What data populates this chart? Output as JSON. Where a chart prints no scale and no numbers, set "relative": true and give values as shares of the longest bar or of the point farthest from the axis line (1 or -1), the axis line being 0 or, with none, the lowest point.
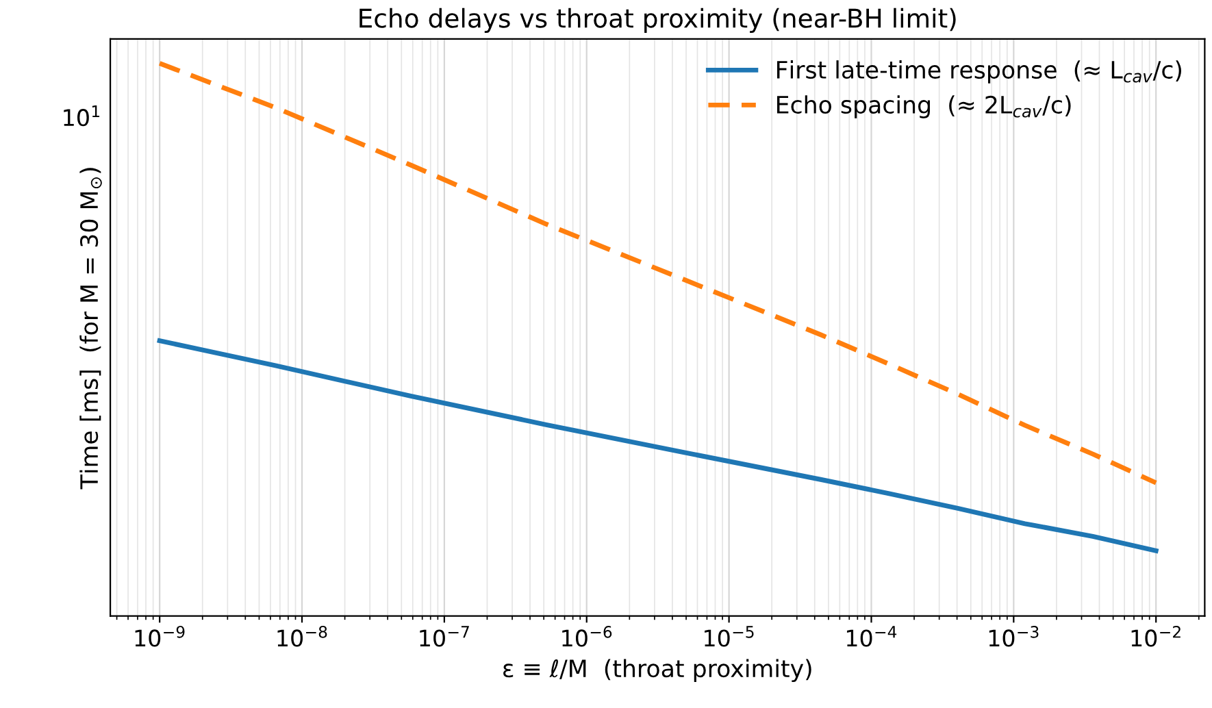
{
  "chart_data": {
    "type": "line",
    "title": "Echo delays vs throat proximity (near-BH limit)",
    "xlabel": "ε ≡ ℓ/M  (throat proximity)",
    "ylabel": "Time [ms]  (for M = 30 M$_{⊙}$)",
    "log": "x",
    "grid": true,
    "legend": "top right",
    "x": [
      1e-09,
      6.5e-09,
      5.8e-08,
      5.2e-07,
      4.8e-06,
      4.4e-05,
      0.00013,
      0.0004,
      0.0012,
      0.0036,
      0.01
    ],
    "series": [
      {
        "name": "First late-time response  (≈ L$_{cav}$/c)",
        "color": "#1f77b4",
        "line_style": "solid",
        "values": [
          0.498,
          0.453,
          0.398,
          0.346,
          0.296,
          0.247,
          0.222,
          0.195,
          0.167,
          0.144,
          0.118
        ]
      },
      {
        "name": "Echo spacing  (≈ 2L$_{cav}$/c)",
        "color": "#ff7f0e",
        "line_style": "dashed",
        "values": [
          1,
          0.92,
          0.816,
          0.709,
          0.609,
          0.509,
          0.457,
          0.402,
          0.345,
          0.293,
          0.241
        ]
      }
    ],
    "relative": true,
    "annotations": [
      "10$^{1}$"
    ],
    "xlim": [
      4.5e-10,
      0.022
    ],
    "xticks": [
      {
        "value": 5e-10,
        "label": null
      },
      {
        "value": 6e-10,
        "label": null
      },
      {
        "value": 7e-10,
        "label": null
      },
      {
        "value": 8e-10,
        "label": null
      },
      {
        "value": 9e-10,
        "label": null
      },
      {
        "value": 1e-09,
        "label": "10$^{−9}$"
      },
      {
        "value": 2e-09,
        "label": null
      },
      {
        "value": 3e-09,
        "label": null
      },
      {
        "value": 4e-09,
        "label": null
      },
      {
        "value": 5e-09,
        "label": null
      },
      {
        "value": 6e-09,
        "label": null
      },
      {
        "value": 7e-09,
        "label": null
      },
      {
        "value": 8e-09,
        "label": null
      },
      {
        "value": 9e-09,
        "label": null
      },
      {
        "value": 1e-08,
        "label": "10$^{−8}$"
      },
      {
        "value": 2e-08,
        "label": null
      },
      {
        "value": 3e-08,
        "label": null
      },
      {
        "value": 4e-08,
        "label": null
      },
      {
        "value": 5e-08,
        "label": null
      },
      {
        "value": 6e-08,
        "label": null
      },
      {
        "value": 7e-08,
        "label": null
      },
      {
        "value": 8e-08,
        "label": null
      },
      {
        "value": 9e-08,
        "label": null
      },
      {
        "value": 1e-07,
        "label": "10$^{−7}$"
      },
      {
        "value": 2e-07,
        "label": null
      },
      {
        "value": 3e-07,
        "label": null
      },
      {
        "value": 4e-07,
        "label": null
      },
      {
        "value": 5e-07,
        "label": null
      },
      {
        "value": 6e-07,
        "label": null
      },
      {
        "value": 7e-07,
        "label": null
      },
      {
        "value": 8e-07,
        "label": null
      },
      {
        "value": 9e-07,
        "label": null
      },
      {
        "value": 1e-06,
        "label": "10$^{−6}$"
      },
      {
        "value": 2e-06,
        "label": null
      },
      {
        "value": 3e-06,
        "label": null
      },
      {
        "value": 4e-06,
        "label": null
      },
      {
        "value": 5e-06,
        "label": null
      },
      {
        "value": 6e-06,
        "label": null
      },
      {
        "value": 7e-06,
        "label": null
      },
      {
        "value": 8e-06,
        "label": null
      },
      {
        "value": 9e-06,
        "label": null
      },
      {
        "value": 1e-05,
        "label": "10$^{−5}$"
      },
      {
        "value": 2e-05,
        "label": null
      },
      {
        "value": 3e-05,
        "label": null
      },
      {
        "value": 4e-05,
        "label": null
      },
      {
        "value": 5e-05,
        "label": null
      },
      {
        "value": 6e-05,
        "label": null
      },
      {
        "value": 7e-05,
        "label": null
      },
      {
        "value": 8e-05,
        "label": null
      },
      {
        "value": 9e-05,
        "label": null
      },
      {
        "value": 0.0001,
        "label": "10$^{−4}$"
      },
      {
        "value": 0.0002,
        "label": null
      },
      {
        "value": 0.0003,
        "label": null
      },
      {
        "value": 0.0004,
        "label": null
      },
      {
        "value": 0.0005,
        "label": null
      },
      {
        "value": 0.0006,
        "label": null
      },
      {
        "value": 0.0007,
        "label": null
      },
      {
        "value": 0.0008,
        "label": null
      },
      {
        "value": 0.0009,
        "label": null
      },
      {
        "value": 0.001,
        "label": "10$^{−3}$"
      },
      {
        "value": 0.002,
        "label": null
      },
      {
        "value": 0.003,
        "label": null
      },
      {
        "value": 0.004,
        "label": null
      },
      {
        "value": 0.005,
        "label": null
      },
      {
        "value": 0.006,
        "label": null
      },
      {
        "value": 0.007,
        "label": null
      },
      {
        "value": 0.008,
        "label": null
      },
      {
        "value": 0.009,
        "label": null
      },
      {
        "value": 0.01,
        "label": "10$^{−2}$"
      },
      {
        "value": 0.02,
        "label": null
      }
    ]
  }
}
